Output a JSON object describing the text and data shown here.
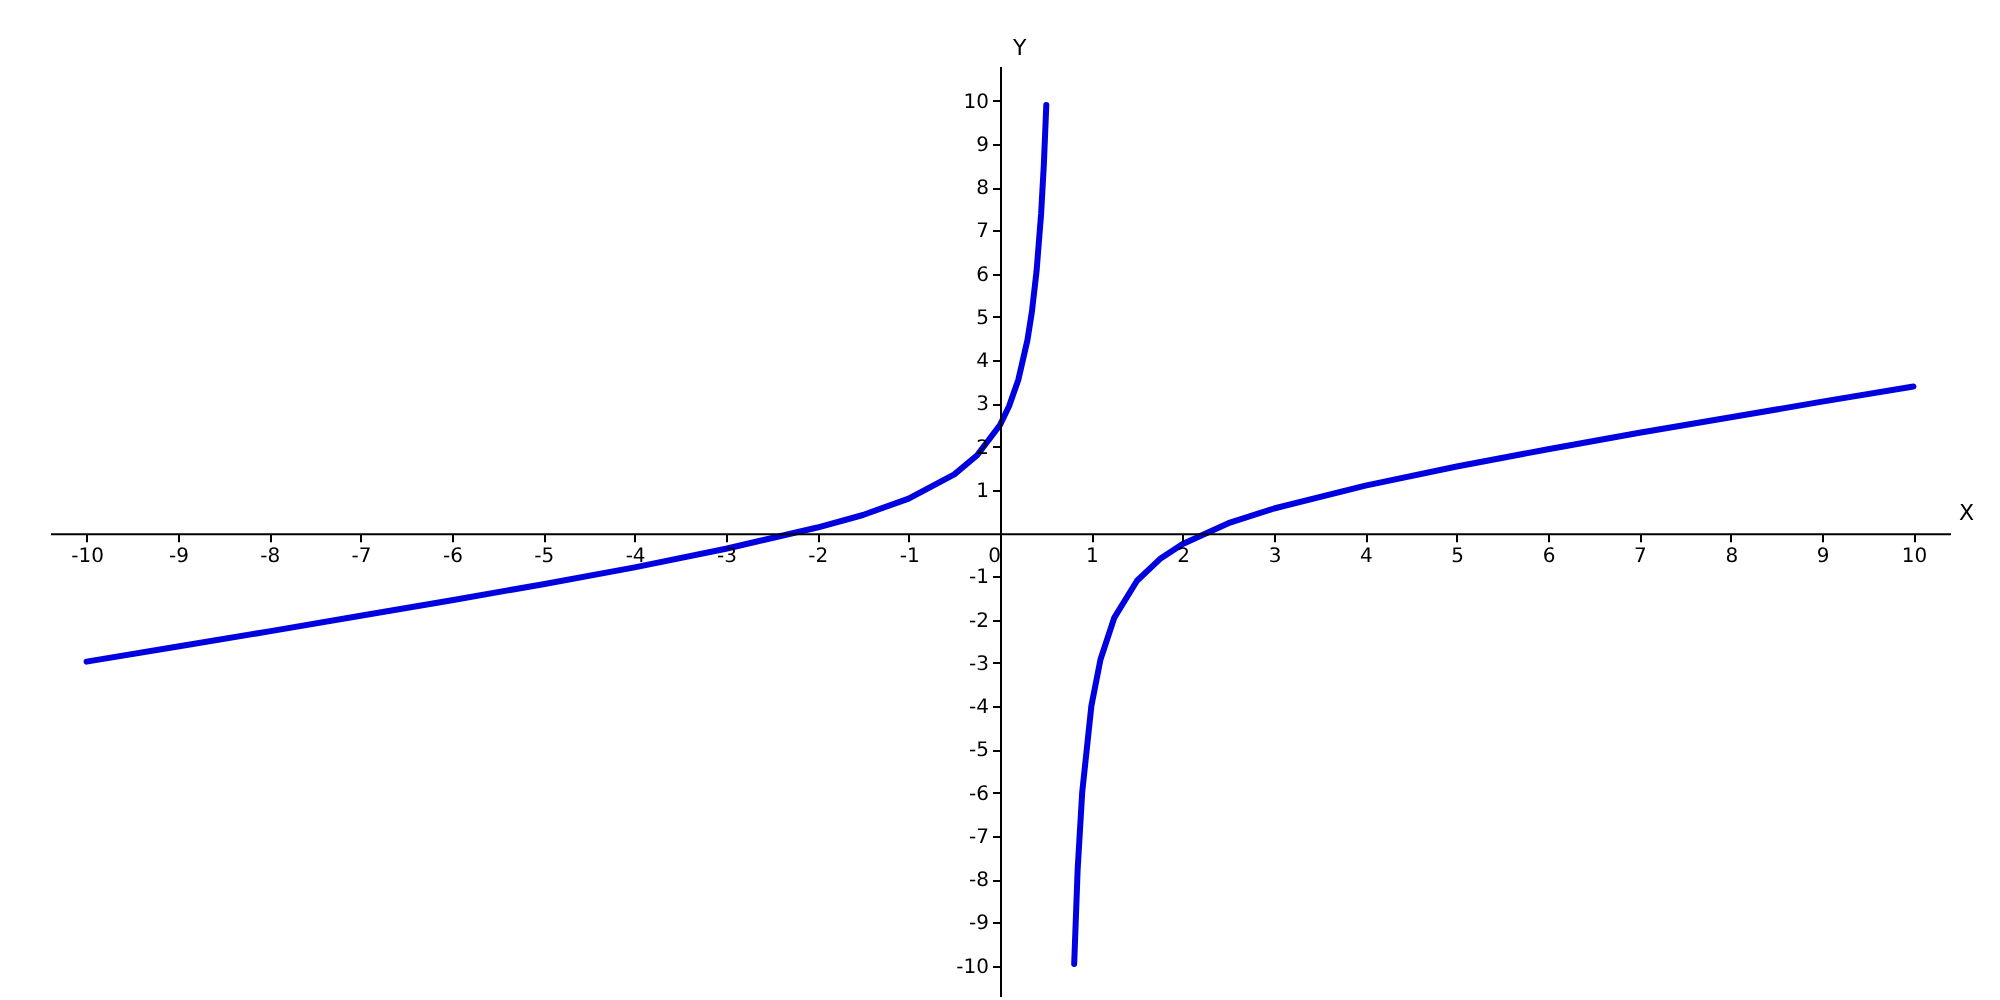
{
  "chart_data": {
    "type": "line",
    "xlabel": "X",
    "ylabel": "Y",
    "xlim": [
      -10.4,
      10.4
    ],
    "ylim": [
      -10.7,
      10.8
    ],
    "xticks": [
      -10,
      -9,
      -8,
      -7,
      -6,
      -5,
      -4,
      -3,
      -2,
      -1,
      0,
      1,
      2,
      3,
      4,
      5,
      6,
      7,
      8,
      9,
      10
    ],
    "yticks": [
      -10,
      -9,
      -8,
      -7,
      -6,
      -5,
      -4,
      -3,
      -2,
      -1,
      1,
      2,
      3,
      4,
      5,
      6,
      7,
      8,
      9,
      10
    ],
    "grid": false,
    "marker": "none",
    "line_style": "solid",
    "series": [
      {
        "color": "#0000e0",
        "x": [
          -10,
          -9,
          -8,
          -7,
          -6,
          -5,
          -4,
          -3,
          -2,
          -1.5,
          -1,
          -0.5,
          -0.25,
          0,
          0.1,
          0.2,
          0.3,
          0.35,
          0.4,
          0.45,
          0.48,
          0.507
        ],
        "values": [
          -2.97,
          -2.62,
          -2.27,
          -1.91,
          -1.55,
          -1.18,
          -0.79,
          -0.36,
          0.13,
          0.42,
          0.8,
          1.36,
          1.8,
          2.5,
          2.94,
          3.54,
          4.46,
          5.13,
          6.05,
          7.38,
          8.52,
          9.9
        ]
      },
      {
        "color": "#0000e0",
        "x": [
          0.812,
          0.85,
          0.9,
          1,
          1.1,
          1.25,
          1.5,
          1.75,
          2,
          2.5,
          3,
          4,
          5,
          6,
          7,
          8,
          9,
          10
        ],
        "values": [
          -9.96,
          -7.78,
          -5.99,
          -4,
          -2.92,
          -1.96,
          -1.1,
          -0.6,
          -0.25,
          0.23,
          0.57,
          1.1,
          1.54,
          1.94,
          2.32,
          2.68,
          3.04,
          3.39
        ]
      }
    ]
  }
}
